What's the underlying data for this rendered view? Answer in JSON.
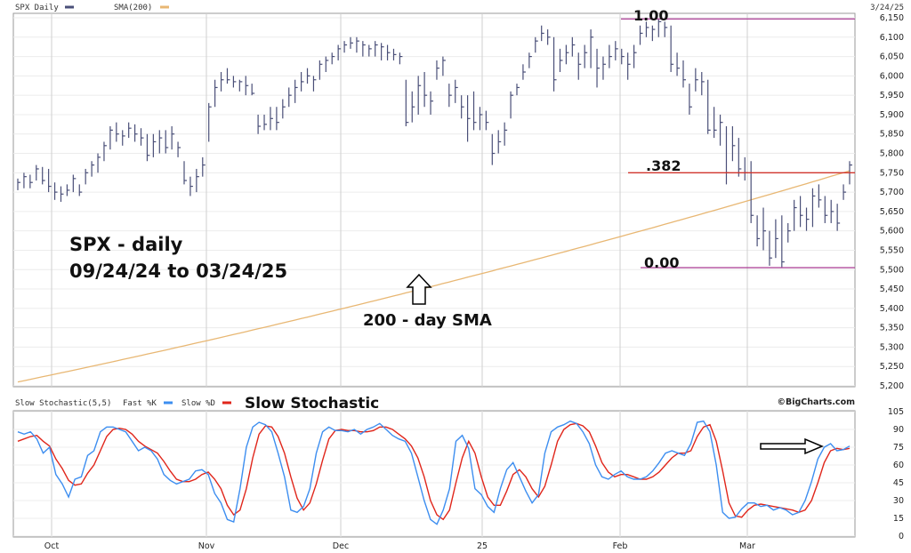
{
  "header": {
    "symbol": "SPX Daily",
    "sma_label": "SMA(200)",
    "date": "3/24/25"
  },
  "colors": {
    "price": "#4a4f78",
    "sma": "#e8b773",
    "fib": "#b04a9c",
    "fib382": "#d0342c",
    "fast": "#3d8ef0",
    "slow": "#e0261b",
    "grid": "#cfcfcf"
  },
  "annotations": {
    "title_line1": "SPX - daily",
    "title_line2": "09/24/24 to 03/24/25",
    "sma_note": "200 - day SMA",
    "fib_top": "1.00",
    "fib_mid": ".382",
    "fib_bottom": "0.00",
    "stoch_title": "Slow Stochastic",
    "brand": "©BigCharts.com"
  },
  "stoch_header": {
    "label": "Slow Stochastic(5,5)",
    "fast": "Fast %K",
    "slow": "Slow %D"
  },
  "chart_data": [
    {
      "type": "ohlc",
      "ylim": [
        5200,
        6150
      ],
      "y_ticks": [
        "5,200",
        "5,250",
        "5,300",
        "5,350",
        "5,400",
        "5,450",
        "5,500",
        "5,550",
        "5,600",
        "5,650",
        "5,700",
        "5,750",
        "5,800",
        "5,850",
        "5,900",
        "5,950",
        "6,000",
        "6,050",
        "6,100",
        "6,150"
      ],
      "x_ticks": [
        "Oct",
        "Nov",
        "Dec",
        "25",
        "Feb",
        "Mar"
      ],
      "fib_levels": [
        6147,
        5750,
        5505
      ],
      "price": [
        [
          5735,
          5705,
          5725
        ],
        [
          5750,
          5710,
          5740
        ],
        [
          5745,
          5710,
          5725
        ],
        [
          5770,
          5730,
          5760
        ],
        [
          5765,
          5720,
          5730
        ],
        [
          5760,
          5700,
          5715
        ],
        [
          5725,
          5680,
          5700
        ],
        [
          5715,
          5675,
          5695
        ],
        [
          5720,
          5690,
          5705
        ],
        [
          5745,
          5700,
          5735
        ],
        [
          5720,
          5690,
          5700
        ],
        [
          5760,
          5720,
          5750
        ],
        [
          5780,
          5740,
          5770
        ],
        [
          5800,
          5750,
          5790
        ],
        [
          5830,
          5780,
          5820
        ],
        [
          5870,
          5810,
          5860
        ],
        [
          5880,
          5830,
          5850
        ],
        [
          5860,
          5820,
          5845
        ],
        [
          5880,
          5840,
          5865
        ],
        [
          5875,
          5830,
          5850
        ],
        [
          5865,
          5820,
          5840
        ],
        [
          5850,
          5780,
          5795
        ],
        [
          5850,
          5790,
          5830
        ],
        [
          5860,
          5800,
          5840
        ],
        [
          5860,
          5800,
          5815
        ],
        [
          5870,
          5810,
          5850
        ],
        [
          5830,
          5790,
          5815
        ],
        [
          5780,
          5720,
          5730
        ],
        [
          5740,
          5690,
          5715
        ],
        [
          5760,
          5700,
          5740
        ],
        [
          5790,
          5740,
          5770
        ],
        [
          5930,
          5830,
          5920
        ],
        [
          5990,
          5920,
          5970
        ],
        [
          6010,
          5960,
          5990
        ],
        [
          6020,
          5980,
          5990
        ],
        [
          6000,
          5970,
          5985
        ],
        [
          5990,
          5960,
          5985
        ],
        [
          6000,
          5950,
          5975
        ],
        [
          5980,
          5950,
          5955
        ],
        [
          5900,
          5850,
          5870
        ],
        [
          5900,
          5860,
          5875
        ],
        [
          5920,
          5860,
          5890
        ],
        [
          5920,
          5860,
          5880
        ],
        [
          5940,
          5890,
          5920
        ],
        [
          5970,
          5920,
          5950
        ],
        [
          5990,
          5930,
          5970
        ],
        [
          6010,
          5960,
          5985
        ],
        [
          6020,
          5980,
          6000
        ],
        [
          6000,
          5960,
          5990
        ],
        [
          6040,
          5990,
          6030
        ],
        [
          6050,
          6010,
          6040
        ],
        [
          6060,
          6030,
          6050
        ],
        [
          6080,
          6040,
          6070
        ],
        [
          6090,
          6060,
          6080
        ],
        [
          6100,
          6070,
          6085
        ],
        [
          6100,
          6060,
          6090
        ],
        [
          6090,
          6050,
          6080
        ],
        [
          6080,
          6050,
          6070
        ],
        [
          6090,
          6050,
          6080
        ],
        [
          6085,
          6040,
          6075
        ],
        [
          6080,
          6040,
          6060
        ],
        [
          6070,
          6040,
          6055
        ],
        [
          6060,
          6030,
          6050
        ],
        [
          5990,
          5870,
          5880
        ],
        [
          5960,
          5880,
          5920
        ],
        [
          6000,
          5900,
          5975
        ],
        [
          6010,
          5920,
          5950
        ],
        [
          5960,
          5900,
          5935
        ],
        [
          6040,
          5990,
          6020
        ],
        [
          6050,
          6000,
          6040
        ],
        [
          5980,
          5920,
          5950
        ],
        [
          5990,
          5930,
          5970
        ],
        [
          5950,
          5890,
          5920
        ],
        [
          5950,
          5830,
          5890
        ],
        [
          5960,
          5860,
          5880
        ],
        [
          5920,
          5860,
          5900
        ],
        [
          5910,
          5860,
          5880
        ],
        [
          5850,
          5770,
          5800
        ],
        [
          5860,
          5800,
          5830
        ],
        [
          5880,
          5820,
          5860
        ],
        [
          5960,
          5890,
          5950
        ],
        [
          5980,
          5950,
          5970
        ],
        [
          6030,
          5990,
          6010
        ],
        [
          6060,
          6020,
          6050
        ],
        [
          6100,
          6060,
          6090
        ],
        [
          6130,
          6090,
          6110
        ],
        [
          6120,
          6080,
          6100
        ],
        [
          6100,
          5960,
          5990
        ],
        [
          6070,
          6010,
          6040
        ],
        [
          6080,
          6030,
          6060
        ],
        [
          6100,
          6050,
          6080
        ],
        [
          6060,
          5990,
          6030
        ],
        [
          6080,
          6020,
          6060
        ],
        [
          6120,
          6020,
          6100
        ],
        [
          6070,
          5970,
          6020
        ],
        [
          6050,
          5990,
          6030
        ],
        [
          6080,
          6020,
          6050
        ],
        [
          6090,
          6040,
          6070
        ],
        [
          6070,
          6030,
          6050
        ],
        [
          6060,
          5990,
          6030
        ],
        [
          6080,
          6020,
          6060
        ],
        [
          6130,
          6080,
          6110
        ],
        [
          6140,
          6100,
          6125
        ],
        [
          6130,
          6090,
          6120
        ],
        [
          6147,
          6100,
          6140
        ],
        [
          6140,
          6100,
          6125
        ],
        [
          6130,
          6010,
          6030
        ],
        [
          6060,
          6000,
          6020
        ],
        [
          6040,
          5970,
          5990
        ],
        [
          5980,
          5900,
          5920
        ],
        [
          6020,
          5960,
          5990
        ],
        [
          6010,
          5950,
          5985
        ],
        [
          5990,
          5850,
          5860
        ],
        [
          5920,
          5840,
          5860
        ],
        [
          5900,
          5820,
          5880
        ],
        [
          5870,
          5720,
          5750
        ],
        [
          5870,
          5780,
          5820
        ],
        [
          5840,
          5740,
          5760
        ],
        [
          5790,
          5730,
          5750
        ],
        [
          5780,
          5620,
          5640
        ],
        [
          5640,
          5560,
          5580
        ],
        [
          5660,
          5550,
          5600
        ],
        [
          5600,
          5510,
          5530
        ],
        [
          5630,
          5530,
          5580
        ],
        [
          5640,
          5505,
          5520
        ],
        [
          5620,
          5570,
          5600
        ],
        [
          5680,
          5600,
          5660
        ],
        [
          5690,
          5610,
          5640
        ],
        [
          5660,
          5600,
          5630
        ],
        [
          5710,
          5610,
          5690
        ],
        [
          5720,
          5660,
          5680
        ],
        [
          5690,
          5620,
          5640
        ],
        [
          5680,
          5620,
          5650
        ],
        [
          5670,
          5600,
          5620
        ],
        [
          5720,
          5680,
          5700
        ],
        [
          5780,
          5720,
          5770
        ]
      ],
      "sma_range": [
        5210,
        5755
      ]
    },
    {
      "type": "line",
      "ylim": [
        0,
        105
      ],
      "y_ticks": [
        "0",
        "15",
        "30",
        "45",
        "60",
        "75",
        "90",
        "105"
      ],
      "series": [
        {
          "name": "Fast %K",
          "values": [
            88,
            86,
            88,
            82,
            70,
            75,
            52,
            44,
            33,
            48,
            50,
            68,
            72,
            88,
            92,
            92,
            90,
            88,
            80,
            72,
            75,
            72,
            65,
            52,
            47,
            44,
            46,
            48,
            55,
            56,
            52,
            36,
            28,
            14,
            12,
            40,
            75,
            92,
            96,
            94,
            88,
            70,
            50,
            22,
            20,
            25,
            40,
            70,
            88,
            92,
            89,
            89,
            88,
            90,
            86,
            90,
            92,
            95,
            90,
            85,
            82,
            80,
            70,
            50,
            30,
            14,
            10,
            22,
            40,
            80,
            85,
            74,
            40,
            35,
            25,
            20,
            40,
            56,
            62,
            50,
            38,
            28,
            35,
            70,
            88,
            92,
            94,
            97,
            95,
            88,
            78,
            60,
            50,
            48,
            52,
            55,
            50,
            48,
            48,
            50,
            55,
            62,
            70,
            72,
            70,
            68,
            78,
            96,
            97,
            88,
            60,
            20,
            15,
            16,
            23,
            28,
            28,
            25,
            26,
            22,
            24,
            22,
            18,
            20,
            30,
            46,
            65,
            75,
            78,
            72,
            73,
            76
          ]
        },
        {
          "name": "Slow %D",
          "values": [
            80,
            82,
            84,
            85,
            80,
            76,
            65,
            57,
            47,
            43,
            44,
            53,
            60,
            72,
            84,
            90,
            91,
            90,
            86,
            80,
            76,
            73,
            70,
            63,
            55,
            48,
            46,
            46,
            48,
            52,
            54,
            48,
            40,
            26,
            18,
            22,
            40,
            66,
            86,
            93,
            92,
            84,
            70,
            50,
            32,
            22,
            28,
            44,
            64,
            82,
            89,
            90,
            89,
            89,
            88,
            88,
            89,
            92,
            92,
            90,
            86,
            82,
            76,
            66,
            50,
            30,
            18,
            14,
            22,
            45,
            66,
            80,
            70,
            50,
            33,
            26,
            26,
            38,
            52,
            56,
            50,
            40,
            33,
            42,
            60,
            80,
            90,
            94,
            95,
            93,
            88,
            76,
            62,
            54,
            50,
            52,
            52,
            50,
            48,
            48,
            50,
            54,
            60,
            66,
            70,
            70,
            72,
            84,
            92,
            94,
            80,
            55,
            28,
            17,
            16,
            22,
            26,
            27,
            26,
            25,
            24,
            23,
            22,
            20,
            22,
            30,
            45,
            62,
            72,
            74,
            73,
            74
          ]
        }
      ]
    }
  ]
}
